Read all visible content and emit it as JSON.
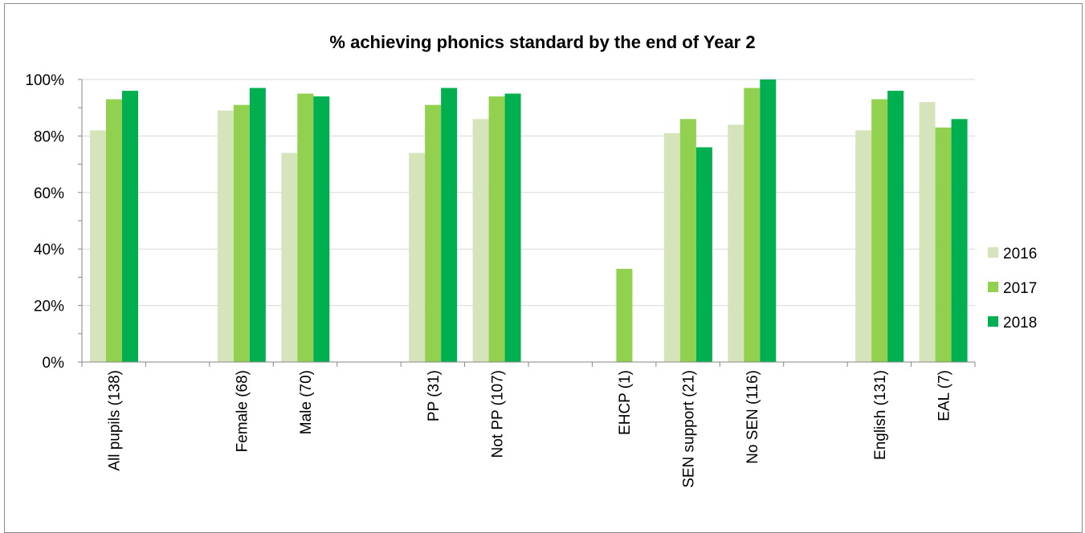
{
  "chart_data": {
    "type": "bar",
    "title": "% achieving phonics standard by the end of Year 2",
    "xlabel": "",
    "ylabel": "",
    "ylim": [
      0,
      100
    ],
    "y_tick_values": [
      0,
      20,
      40,
      60,
      80,
      100
    ],
    "y_tick_labels": [
      "0%",
      "20%",
      "40%",
      "60%",
      "80%",
      "100%"
    ],
    "grid": true,
    "legend_position": "right",
    "slots": [
      "All pupils (138)",
      "",
      "Female (68)",
      "Male (70)",
      "",
      "PP (31)",
      "Not PP (107)",
      "",
      "EHCP (1)",
      "SEN support (21)",
      "No SEN (116)",
      "",
      "English (131)",
      "EAL (7)"
    ],
    "categories": [
      "All pupils (138)",
      "Female (68)",
      "Male (70)",
      "PP (31)",
      "Not PP (107)",
      "EHCP (1)",
      "SEN support (21)",
      "No SEN (116)",
      "English (131)",
      "EAL (7)"
    ],
    "series": [
      {
        "name": "2016",
        "color": "#d6e4bc",
        "values": [
          82,
          89,
          74,
          74,
          86,
          null,
          81,
          84,
          82,
          92
        ]
      },
      {
        "name": "2017",
        "color": "#92d050",
        "values": [
          93,
          91,
          95,
          91,
          94,
          33,
          86,
          97,
          93,
          83
        ]
      },
      {
        "name": "2018",
        "color": "#00b050",
        "values": [
          96,
          97,
          94,
          97,
          95,
          null,
          76,
          100,
          96,
          86
        ]
      }
    ]
  }
}
